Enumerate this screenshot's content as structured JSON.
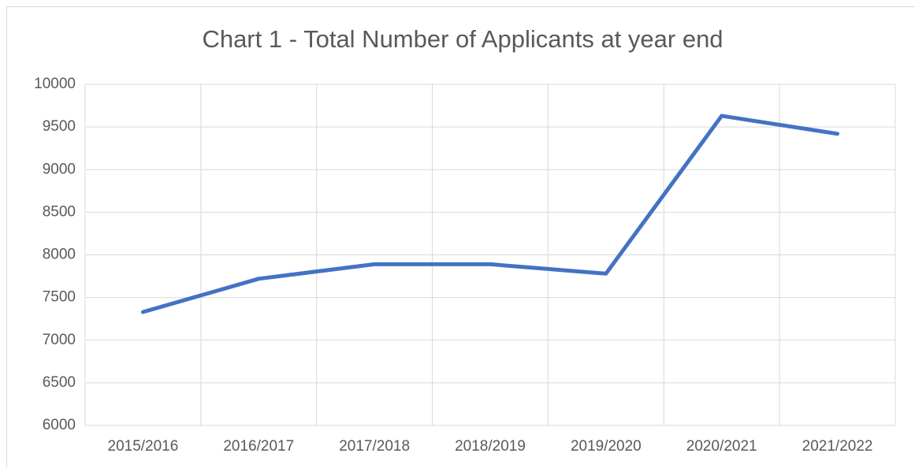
{
  "chart_data": {
    "type": "line",
    "title": "Chart 1 - Total Number of Applicants at year end",
    "categories": [
      "2015/2016",
      "2016/2017",
      "2017/2018",
      "2018/2019",
      "2019/2020",
      "2020/2021",
      "2021/2022"
    ],
    "series": [
      {
        "name": "Total Number of Applicants",
        "color": "#4472c4",
        "values": [
          7330,
          7720,
          7890,
          7890,
          7780,
          9630,
          9420
        ]
      }
    ],
    "ylim": [
      6000,
      10000
    ],
    "yticks": [
      6000,
      6500,
      7000,
      7500,
      8000,
      8500,
      9000,
      9500,
      10000
    ],
    "grid": true,
    "legend": false
  }
}
